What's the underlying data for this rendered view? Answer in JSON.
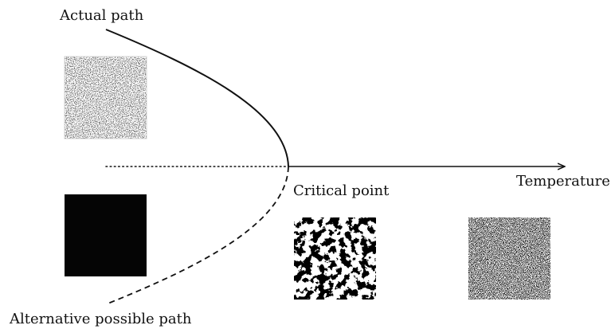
{
  "labels": {
    "actual_path": "Actual path",
    "alternative_path": "Alternative possible path",
    "critical_point": "Critical point",
    "temperature": "Temperature"
  },
  "tiles": [
    {
      "name": "low-temperature-upper-state",
      "pattern": "mostly white, sparse noise"
    },
    {
      "name": "low-temperature-lower-state",
      "pattern": "solid black"
    },
    {
      "name": "critical-point-state",
      "pattern": "large black and white clusters"
    },
    {
      "name": "high-temperature-state",
      "pattern": "fine grey noise"
    }
  ],
  "colors": {
    "line": "#111111",
    "background": "#ffffff"
  }
}
